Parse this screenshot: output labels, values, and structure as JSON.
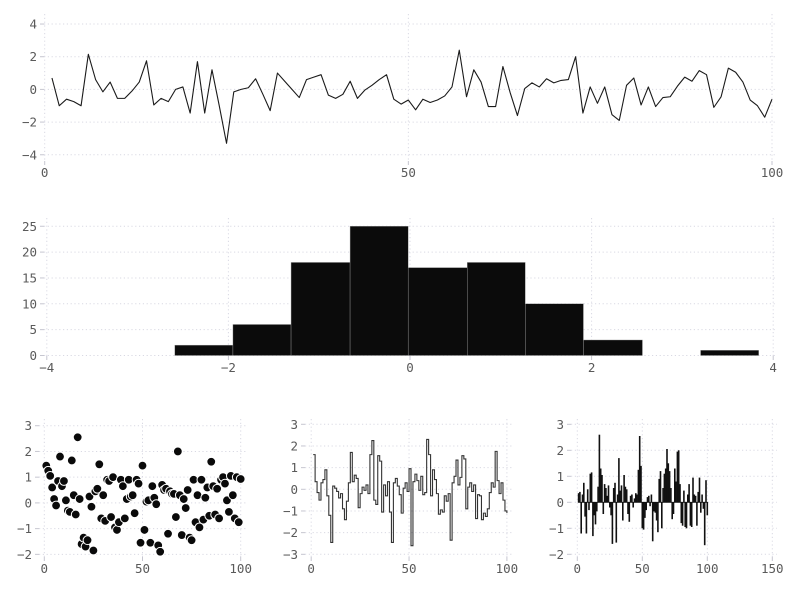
{
  "figure": {
    "background": "#ffffff",
    "grid_color": "#d9d9e3",
    "tick_mark_color": "#c6c6d0",
    "label_color": "#5a5a5a",
    "title": ""
  },
  "chart_data": [
    {
      "id": "noise-line",
      "type": "line",
      "title": "",
      "xlabel": "",
      "ylabel": "",
      "x_start": 1,
      "xlim": [
        0,
        100
      ],
      "ylim": [
        -4.4,
        4.4
      ],
      "xticks": [
        0,
        50,
        100
      ],
      "yticks": [
        -4,
        -2,
        0,
        2,
        4
      ],
      "grid": true,
      "legend": null,
      "line_color": "#1a1a1a",
      "values": [
        0.7,
        -1.0,
        -0.6,
        -0.75,
        -1.0,
        2.15,
        0.6,
        -0.15,
        0.45,
        -0.55,
        -0.55,
        -0.1,
        0.45,
        1.75,
        -0.95,
        -0.55,
        -0.75,
        0.0,
        0.15,
        -1.45,
        1.7,
        -1.45,
        1.2,
        -1.0,
        -3.3,
        -0.15,
        0.0,
        0.1,
        0.65,
        -0.3,
        -1.3,
        1.0,
        0.5,
        0.0,
        -0.5,
        0.6,
        0.75,
        0.9,
        -0.35,
        -0.55,
        -0.3,
        0.5,
        -0.55,
        -0.05,
        0.25,
        0.6,
        0.9,
        -0.6,
        -0.9,
        -0.65,
        -1.25,
        -0.6,
        -0.8,
        -0.65,
        -0.4,
        0.15,
        2.4,
        -0.45,
        1.2,
        0.45,
        -1.05,
        -1.05,
        1.4,
        -0.2,
        -1.6,
        0.05,
        0.4,
        0.15,
        0.65,
        0.4,
        0.55,
        0.6,
        2.0,
        -1.45,
        0.15,
        -0.85,
        0.15,
        -1.55,
        -1.9,
        0.25,
        0.7,
        -0.95,
        0.15,
        -1.05,
        -0.5,
        -0.45,
        0.2,
        0.75,
        0.5,
        1.15,
        0.9,
        -1.1,
        -0.45,
        1.3,
        1.05,
        0.45,
        -0.65,
        -1.0,
        -1.7,
        -0.6
      ]
    },
    {
      "id": "histogram",
      "type": "bar",
      "subtype": "histogram",
      "title": "",
      "xlabel": "",
      "ylabel": "",
      "xlim": [
        -4,
        4
      ],
      "ylim": [
        0,
        26
      ],
      "xticks": [
        -4,
        -2,
        0,
        2,
        4
      ],
      "yticks": [
        0,
        5,
        10,
        15,
        20,
        25
      ],
      "grid": true,
      "bar_color": "#0b0b0b",
      "bin_edges": [
        -2.59,
        -1.95,
        -1.31,
        -0.66,
        -0.02,
        0.63,
        1.27,
        1.91,
        2.56,
        3.2,
        3.84
      ],
      "counts": [
        2,
        6,
        18,
        25,
        17,
        18,
        10,
        3,
        0,
        1
      ]
    },
    {
      "id": "scatter",
      "type": "scatter",
      "title": "",
      "xlabel": "",
      "ylabel": "",
      "xlim": [
        0,
        100
      ],
      "ylim": [
        -2.2,
        3.1
      ],
      "xticks": [
        0,
        50,
        100
      ],
      "yticks": [
        -2,
        -1,
        0,
        1,
        2,
        3
      ],
      "grid": true,
      "marker_color": "#0a0a0a",
      "marker_edge_color": "#ffffff",
      "points": [
        [
          1,
          1.45
        ],
        [
          2,
          1.25
        ],
        [
          3,
          1.05
        ],
        [
          4,
          0.6
        ],
        [
          5,
          0.15
        ],
        [
          6,
          -0.1
        ],
        [
          7,
          0.85
        ],
        [
          8,
          1.8
        ],
        [
          9,
          0.65
        ],
        [
          10,
          0.85
        ],
        [
          11,
          0.1
        ],
        [
          12,
          -0.3
        ],
        [
          13,
          -0.35
        ],
        [
          14,
          1.65
        ],
        [
          15,
          0.3
        ],
        [
          16,
          -0.45
        ],
        [
          17,
          2.55
        ],
        [
          18,
          0.15
        ],
        [
          19,
          -1.6
        ],
        [
          20,
          -1.35
        ],
        [
          21,
          -1.7
        ],
        [
          22,
          -1.45
        ],
        [
          23,
          0.25
        ],
        [
          24,
          -0.15
        ],
        [
          25,
          -1.85
        ],
        [
          26,
          0.45
        ],
        [
          27,
          0.55
        ],
        [
          28,
          1.5
        ],
        [
          29,
          -0.6
        ],
        [
          30,
          0.3
        ],
        [
          31,
          -0.7
        ],
        [
          32,
          0.9
        ],
        [
          33,
          0.85
        ],
        [
          34,
          -0.55
        ],
        [
          35,
          1.0
        ],
        [
          36,
          -0.95
        ],
        [
          37,
          -1.05
        ],
        [
          38,
          -0.75
        ],
        [
          39,
          0.9
        ],
        [
          40,
          0.65
        ],
        [
          41,
          -0.6
        ],
        [
          42,
          0.15
        ],
        [
          43,
          0.9
        ],
        [
          44,
          0.25
        ],
        [
          45,
          0.3
        ],
        [
          46,
          -0.4
        ],
        [
          47,
          0.9
        ],
        [
          48,
          0.75
        ],
        [
          49,
          -1.55
        ],
        [
          50,
          1.45
        ],
        [
          51,
          -1.05
        ],
        [
          52,
          0.05
        ],
        [
          53,
          0.1
        ],
        [
          54,
          -1.55
        ],
        [
          55,
          0.65
        ],
        [
          56,
          0.2
        ],
        [
          57,
          -0.05
        ],
        [
          58,
          -1.65
        ],
        [
          59,
          -1.9
        ],
        [
          60,
          0.7
        ],
        [
          61,
          0.5
        ],
        [
          62,
          0.55
        ],
        [
          63,
          -1.2
        ],
        [
          64,
          0.45
        ],
        [
          65,
          0.35
        ],
        [
          66,
          0.35
        ],
        [
          67,
          -0.55
        ],
        [
          68,
          2.0
        ],
        [
          69,
          0.3
        ],
        [
          70,
          -1.25
        ],
        [
          71,
          0.15
        ],
        [
          72,
          -0.2
        ],
        [
          73,
          0.5
        ],
        [
          74,
          -1.35
        ],
        [
          75,
          -1.45
        ],
        [
          76,
          0.9
        ],
        [
          77,
          -0.75
        ],
        [
          78,
          0.3
        ],
        [
          79,
          -0.95
        ],
        [
          80,
          0.9
        ],
        [
          81,
          -0.65
        ],
        [
          82,
          0.2
        ],
        [
          83,
          0.6
        ],
        [
          84,
          -0.5
        ],
        [
          85,
          1.6
        ],
        [
          86,
          0.65
        ],
        [
          87,
          -0.45
        ],
        [
          88,
          0.55
        ],
        [
          89,
          -0.6
        ],
        [
          90,
          0.9
        ],
        [
          91,
          1.0
        ],
        [
          92,
          0.75
        ],
        [
          93,
          0.1
        ],
        [
          94,
          -0.35
        ],
        [
          95,
          1.05
        ],
        [
          96,
          0.3
        ],
        [
          97,
          -0.6
        ],
        [
          98,
          1.0
        ],
        [
          99,
          -0.75
        ],
        [
          100,
          0.93
        ]
      ]
    },
    {
      "id": "step",
      "type": "line",
      "subtype": "step",
      "title": "",
      "xlabel": "",
      "ylabel": "",
      "x_start": 1,
      "xlim": [
        0,
        100
      ],
      "ylim": [
        -3.2,
        3.2
      ],
      "xticks": [
        0,
        50,
        100
      ],
      "yticks": [
        -3,
        -2,
        -1,
        0,
        1,
        2,
        3
      ],
      "grid": true,
      "line_color": "#333333",
      "values": [
        1.6,
        0.35,
        -0.15,
        -0.5,
        0.3,
        0.45,
        0.9,
        -0.3,
        -1.2,
        -2.45,
        0.15,
        0.05,
        -0.1,
        -0.4,
        -0.2,
        -0.9,
        -1.4,
        -0.55,
        0.3,
        1.7,
        0.35,
        0.65,
        0.5,
        -0.85,
        -0.2,
        0.1,
        -0.05,
        0.2,
        -0.2,
        1.6,
        2.25,
        -0.5,
        -0.7,
        1.55,
        1.3,
        -1.05,
        0.2,
        -0.3,
        0.35,
        -1.05,
        -2.45,
        0.3,
        0.5,
        0.15,
        -0.25,
        -1.1,
        0.05,
        0.3,
        -0.1,
        0.95,
        -2.6,
        0.35,
        0.7,
        0.4,
        -0.05,
        0.6,
        -0.25,
        -0.15,
        2.3,
        1.6,
        -0.3,
        0.9,
        0.45,
        -0.2,
        -1.15,
        -0.95,
        -1.05,
        -0.3,
        -0.55,
        -0.2,
        -2.35,
        0.3,
        0.6,
        1.35,
        0.2,
        0.55,
        1.55,
        1.4,
        -0.9,
        0.1,
        0.3,
        -0.1,
        0.2,
        -1.35,
        -0.25,
        -0.3,
        -1.4,
        -1.1,
        -1.25,
        -0.9,
        -0.15,
        0.3,
        0.1,
        1.75,
        0.4,
        -0.2,
        0.3,
        -0.5,
        -1.0,
        -1.1
      ]
    },
    {
      "id": "thin-bars",
      "type": "bar",
      "subtype": "thin-bars",
      "title": "",
      "xlabel": "",
      "ylabel": "",
      "x_start": 1,
      "xlim": [
        0,
        150
      ],
      "ylim": [
        -2.2,
        3.1
      ],
      "xticks": [
        0,
        50,
        100,
        150
      ],
      "yticks": [
        -2,
        -1,
        0,
        1,
        2,
        3
      ],
      "grid": true,
      "bar_color": "#111111",
      "values": [
        0.35,
        0.4,
        -1.2,
        0.3,
        0.75,
        -0.55,
        -1.2,
        0.5,
        -0.3,
        1.1,
        1.15,
        -1.3,
        -0.5,
        -0.85,
        -0.35,
        0.6,
        2.6,
        1.3,
        1.05,
        -0.45,
        0.7,
        0.55,
        0.25,
        0.65,
        -0.2,
        -0.5,
        -1.6,
        0.55,
        0.75,
        -1.55,
        0.3,
        1.7,
        0.45,
        0.65,
        -0.7,
        1.05,
        0.6,
        0.5,
        -0.45,
        -0.75,
        0.25,
        0.3,
        -0.2,
        0.15,
        0.35,
        0.3,
        1.25,
        2.55,
        1.4,
        -1.0,
        -1.05,
        -0.6,
        -0.3,
        0.2,
        0.25,
        -0.15,
        0.3,
        -1.5,
        -0.35,
        -0.4,
        -0.7,
        -1.15,
        0.9,
        1.2,
        -1.0,
        0.55,
        1.1,
        1.3,
        2.05,
        1.5,
        1.2,
        0.55,
        -0.65,
        -0.45,
        1.3,
        0.8,
        1.95,
        2.0,
        0.7,
        -0.8,
        -0.9,
        0.45,
        -0.95,
        -1.0,
        0.3,
        0.7,
        -0.9,
        -0.95,
        0.95,
        0.3,
        0.25,
        -0.9,
        0.4,
        0.95,
        -0.4,
        0.3,
        -0.25,
        -1.65,
        0.85,
        -0.5
      ]
    }
  ]
}
